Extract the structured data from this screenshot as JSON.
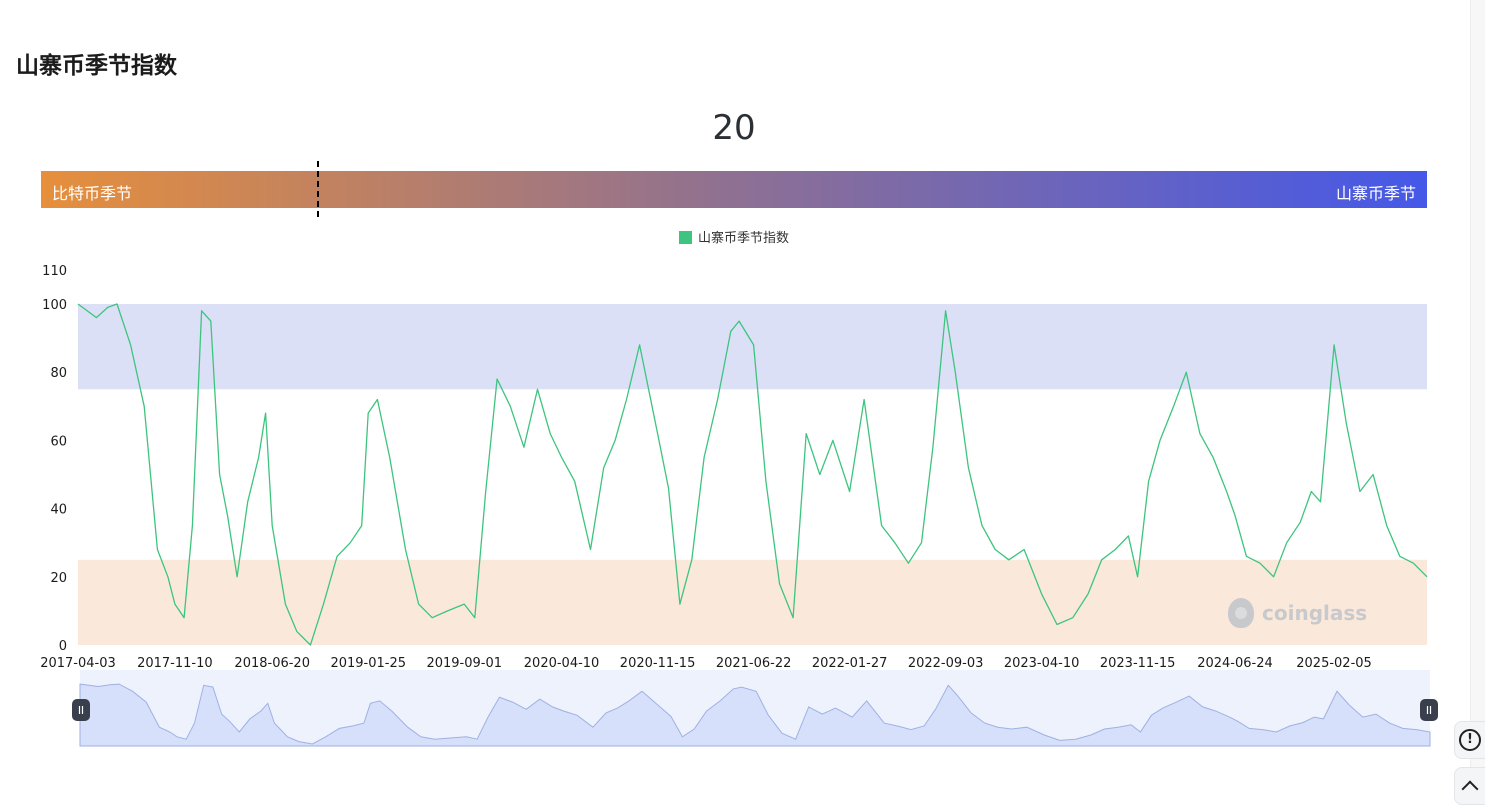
{
  "page_title": "山寨币季节指数",
  "current_value": "20",
  "gauge": {
    "left_label": "比特币季节",
    "right_label": "山寨币季节",
    "value": 20,
    "min": 0,
    "max": 100,
    "colors": [
      "#e68f3c",
      "#8e7093",
      "#4558e8"
    ]
  },
  "watermark": "coinglass",
  "side_buttons": {
    "feedback_icon": "feedback-icon",
    "scroll_top_icon": "chevron-up-icon"
  },
  "chart_data": {
    "type": "line",
    "legend": [
      {
        "name": "山寨币季节指数",
        "color": "#3dc47e"
      }
    ],
    "ylim": [
      0,
      110
    ],
    "y_ticks": [
      "0",
      "20",
      "40",
      "60",
      "80",
      "100",
      "110"
    ],
    "x_tick_labels": [
      "2017-04-03",
      "2017-11-10",
      "2018-06-20",
      "2019-01-25",
      "2019-09-01",
      "2020-04-10",
      "2020-11-15",
      "2021-06-22",
      "2022-01-27",
      "2022-09-03",
      "2023-04-10",
      "2023-11-15",
      "2024-06-24",
      "2025-02-05"
    ],
    "bands": [
      {
        "name": "altcoin-season-zone",
        "from": 75,
        "to": 100,
        "color": "#dbe0f7"
      },
      {
        "name": "bitcoin-season-zone",
        "from": 0,
        "to": 25,
        "color": "#fae9db"
      }
    ],
    "grid": false,
    "series": [
      {
        "name": "山寨币季节指数",
        "color": "#3dc47e",
        "x": [
          "2017-04-03",
          "2017-05-15",
          "2017-06-10",
          "2017-07-01",
          "2017-08-01",
          "2017-09-01",
          "2017-10-01",
          "2017-10-25",
          "2017-11-10",
          "2017-12-01",
          "2017-12-20",
          "2018-01-10",
          "2018-01-31",
          "2018-02-20",
          "2018-03-10",
          "2018-04-01",
          "2018-04-25",
          "2018-05-20",
          "2018-06-05",
          "2018-06-20",
          "2018-07-20",
          "2018-08-15",
          "2018-09-15",
          "2018-10-15",
          "2018-11-15",
          "2018-12-15",
          "2019-01-10",
          "2019-01-25",
          "2019-02-15",
          "2019-03-15",
          "2019-04-20",
          "2019-05-20",
          "2019-06-20",
          "2019-07-25",
          "2019-09-01",
          "2019-09-25",
          "2019-10-20",
          "2019-11-15",
          "2019-12-15",
          "2020-01-15",
          "2020-02-15",
          "2020-03-15",
          "2020-04-10",
          "2020-05-10",
          "2020-06-15",
          "2020-07-15",
          "2020-08-10",
          "2020-09-05",
          "2020-10-05",
          "2020-11-15",
          "2020-12-10",
          "2021-01-05",
          "2021-02-01",
          "2021-03-01",
          "2021-04-01",
          "2021-05-01",
          "2021-05-20",
          "2021-06-22",
          "2021-07-20",
          "2021-08-20",
          "2021-09-20",
          "2021-10-20",
          "2021-11-20",
          "2021-12-20",
          "2022-01-27",
          "2022-03-01",
          "2022-04-10",
          "2022-05-10",
          "2022-06-10",
          "2022-07-10",
          "2022-08-05",
          "2022-09-03",
          "2022-09-25",
          "2022-10-25",
          "2022-11-25",
          "2022-12-25",
          "2023-01-25",
          "2023-03-01",
          "2023-04-10",
          "2023-05-15",
          "2023-06-20",
          "2023-07-25",
          "2023-08-25",
          "2023-09-25",
          "2023-10-25",
          "2023-11-15",
          "2023-12-10",
          "2024-01-05",
          "2024-02-05",
          "2024-03-05",
          "2024-04-05",
          "2024-05-05",
          "2024-06-05",
          "2024-06-24",
          "2024-07-20",
          "2024-08-20",
          "2024-09-20",
          "2024-10-20",
          "2024-11-20",
          "2024-12-15",
          "2025-01-05",
          "2025-02-05",
          "2025-03-05",
          "2025-04-05",
          "2025-05-05",
          "2025-06-05",
          "2025-07-05",
          "2025-08-05",
          "2025-09-05"
        ],
        "values": [
          100,
          96,
          99,
          100,
          88,
          70,
          28,
          20,
          12,
          8,
          35,
          98,
          95,
          50,
          38,
          20,
          42,
          55,
          68,
          35,
          12,
          4,
          0,
          12,
          26,
          30,
          35,
          68,
          72,
          55,
          28,
          12,
          8,
          10,
          12,
          8,
          45,
          78,
          70,
          58,
          75,
          62,
          55,
          48,
          28,
          52,
          60,
          72,
          88,
          62,
          46,
          12,
          25,
          55,
          72,
          92,
          95,
          88,
          48,
          18,
          8,
          62,
          50,
          60,
          45,
          72,
          35,
          30,
          24,
          30,
          58,
          98,
          80,
          52,
          35,
          28,
          25,
          28,
          15,
          6,
          8,
          15,
          25,
          28,
          32,
          20,
          48,
          60,
          70,
          80,
          62,
          55,
          45,
          38,
          26,
          24,
          20,
          30,
          36,
          45,
          42,
          88,
          65,
          45,
          50,
          35,
          26,
          24,
          20
        ]
      }
    ]
  }
}
